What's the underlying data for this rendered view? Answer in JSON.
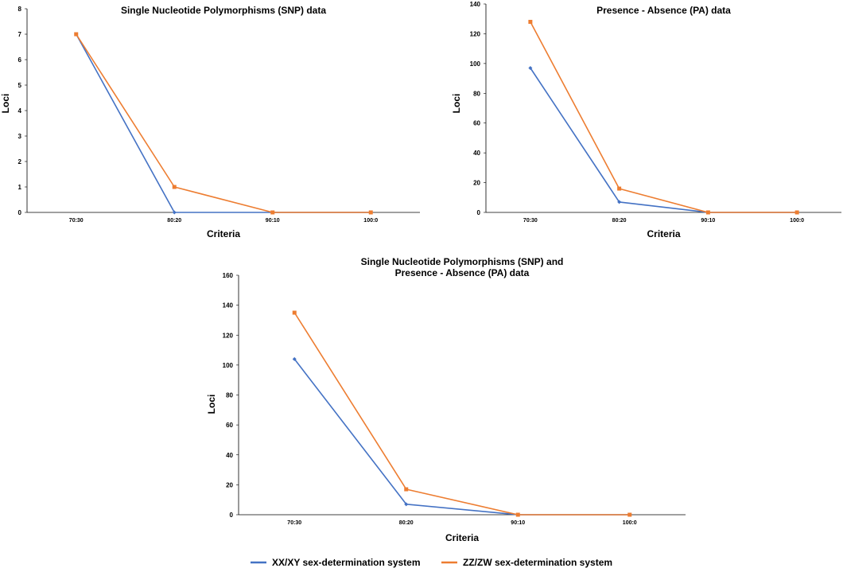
{
  "chart_data": [
    {
      "type": "line",
      "title": "Single Nucleotide Polymorphisms (SNP) data",
      "xlabel": "Criteria",
      "ylabel": "Loci",
      "categories": [
        "70:30",
        "80:20",
        "90:10",
        "100:0"
      ],
      "ylim": [
        0,
        8
      ],
      "yticks": [
        0,
        1,
        2,
        3,
        4,
        5,
        6,
        7,
        8
      ],
      "series": [
        {
          "name": "XX/XY sex-determination system",
          "values": [
            7,
            0,
            0,
            0
          ]
        },
        {
          "name": "ZZ/ZW sex-determination system",
          "values": [
            7,
            1,
            0,
            0
          ]
        }
      ]
    },
    {
      "type": "line",
      "title": "Presence - Absence (PA) data",
      "xlabel": "Criteria",
      "ylabel": "Loci",
      "categories": [
        "70:30",
        "80:20",
        "90:10",
        "100:0"
      ],
      "ylim": [
        0,
        140
      ],
      "yticks": [
        0,
        20,
        40,
        60,
        80,
        100,
        120,
        140
      ],
      "series": [
        {
          "name": "XX/XY sex-determination system",
          "values": [
            97,
            7,
            0,
            0
          ]
        },
        {
          "name": "ZZ/ZW sex-determination system",
          "values": [
            128,
            16,
            0,
            0
          ]
        }
      ]
    },
    {
      "type": "line",
      "title_lines": [
        "Single Nucleotide Polymorphisms (SNP) and",
        "Presence - Absence (PA) data"
      ],
      "xlabel": "Criteria",
      "ylabel": "Loci",
      "categories": [
        "70:30",
        "80:20",
        "90:10",
        "100:0"
      ],
      "ylim": [
        0,
        160
      ],
      "yticks": [
        0,
        20,
        40,
        60,
        80,
        100,
        120,
        140,
        160
      ],
      "series": [
        {
          "name": "XX/XY sex-determination system",
          "values": [
            104,
            7,
            0,
            0
          ]
        },
        {
          "name": "ZZ/ZW sex-determination system",
          "values": [
            135,
            17,
            0,
            0
          ]
        }
      ]
    }
  ],
  "legend": {
    "placement": "bottom-center",
    "items": [
      {
        "label": "XX/XY sex-determination system",
        "color": "#4472C4",
        "marker": "diamond"
      },
      {
        "label": "ZZ/ZW sex-determination system",
        "color": "#ED7D31",
        "marker": "square"
      }
    ]
  }
}
